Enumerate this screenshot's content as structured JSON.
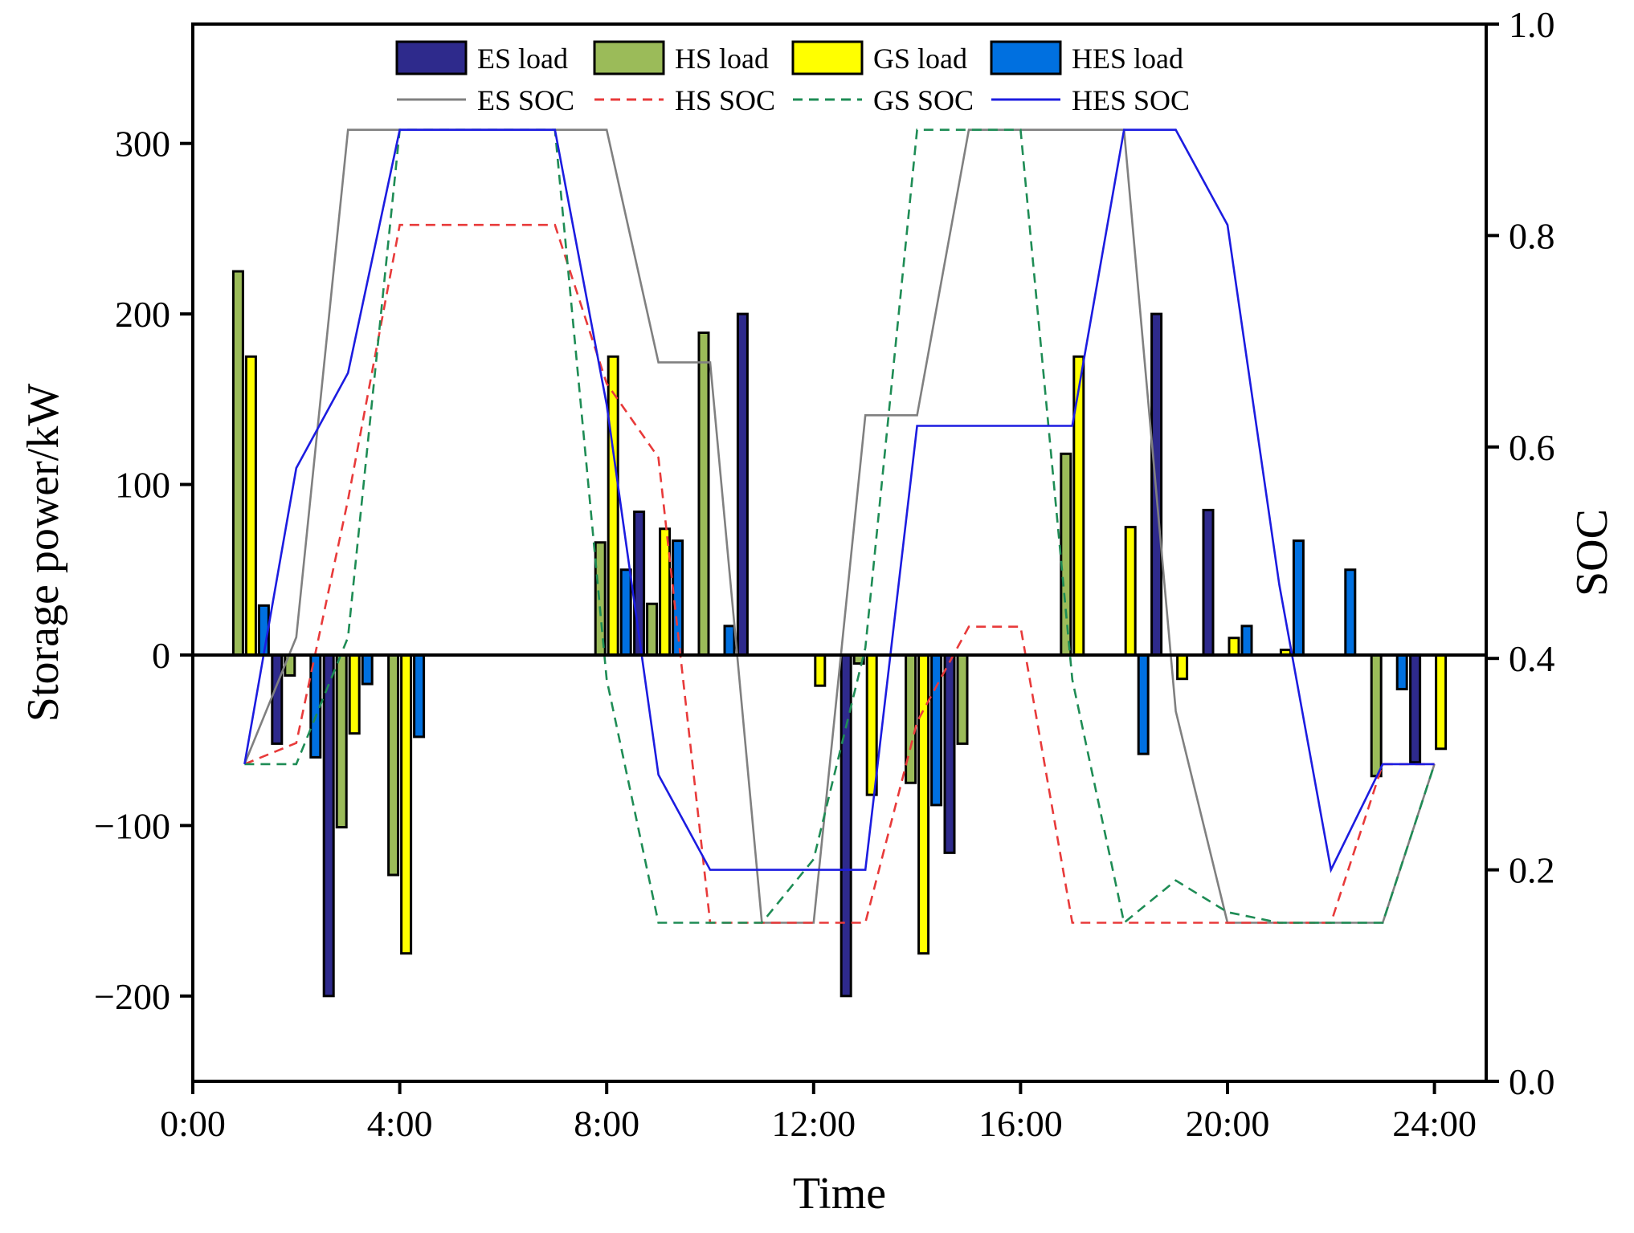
{
  "chart_data": {
    "type": "bar",
    "xlabel": "Time",
    "ylabel": "Storage power/kW",
    "y2label": "SOC",
    "xlim": [
      0,
      25
    ],
    "ylim": [
      -250,
      370
    ],
    "y2lim": [
      0.0,
      1.0
    ],
    "x_ticks": [
      0,
      4,
      8,
      12,
      16,
      20,
      24
    ],
    "x_tick_labels": [
      "0:00",
      "4:00",
      "8:00",
      "12:00",
      "16:00",
      "20:00",
      "24:00"
    ],
    "y_ticks": [
      300,
      200,
      100,
      0,
      -100,
      -200
    ],
    "y_tick_labels": [
      "300",
      "200",
      "100",
      "0",
      "−100",
      "−200"
    ],
    "y2_ticks": [
      0.0,
      0.2,
      0.4,
      0.6,
      0.8,
      1.0
    ],
    "y2_tick_labels": [
      "0.0",
      "0.2",
      "0.4",
      "0.6",
      "0.8",
      "1.0"
    ],
    "hours": [
      1,
      2,
      3,
      4,
      5,
      6,
      7,
      8,
      9,
      10,
      11,
      12,
      13,
      14,
      15,
      16,
      17,
      18,
      19,
      20,
      21,
      22,
      23,
      24
    ],
    "bar_series": [
      {
        "name": "ES load",
        "color": "#2E2A8C",
        "values": [
          0,
          -52,
          -200,
          0,
          0,
          0,
          0,
          0,
          84,
          0,
          200,
          0,
          -200,
          0,
          -116,
          0,
          0,
          0,
          200,
          85,
          0,
          0,
          0,
          -63
        ]
      },
      {
        "name": "HS load",
        "color": "#9BBB59",
        "values": [
          225,
          -12,
          -101,
          -129,
          0,
          0,
          0,
          66,
          30,
          189,
          0,
          0,
          -5,
          -75,
          -52,
          0,
          118,
          0,
          0,
          0,
          0,
          0,
          -71,
          0
        ]
      },
      {
        "name": "GS load",
        "color": "#FFFF00",
        "values": [
          175,
          0,
          -46,
          -175,
          0,
          0,
          0,
          175,
          74,
          0,
          0,
          -18,
          -82,
          -175,
          0,
          0,
          175,
          75,
          -14,
          10,
          3,
          0,
          0,
          -55
        ]
      },
      {
        "name": "HES load",
        "color": "#0070E0",
        "values": [
          29,
          -60,
          -17,
          -48,
          0,
          0,
          0,
          50,
          67,
          17,
          0,
          0,
          0,
          -88,
          0,
          0,
          0,
          -58,
          0,
          17,
          67,
          50,
          -20,
          0
        ]
      }
    ],
    "line_series": [
      {
        "name": "ES SOC",
        "color": "#808080",
        "dash": "solid",
        "x": [
          1,
          2,
          3,
          4,
          5,
          6,
          7,
          8,
          9,
          10,
          11,
          12,
          13,
          14,
          15,
          16,
          17,
          18,
          19,
          20,
          21,
          22,
          23,
          24
        ],
        "values": [
          0.3,
          0.42,
          0.9,
          0.9,
          0.9,
          0.9,
          0.9,
          0.9,
          0.68,
          0.68,
          0.15,
          0.15,
          0.63,
          0.63,
          0.9,
          0.9,
          0.9,
          0.9,
          0.35,
          0.15,
          0.15,
          0.15,
          0.15,
          0.3
        ]
      },
      {
        "name": "HS SOC",
        "color": "#E83A3A",
        "dash": "dashed",
        "x": [
          1,
          2,
          3,
          4,
          5,
          6,
          7,
          8,
          9,
          10,
          11,
          12,
          13,
          14,
          15,
          16,
          17,
          18,
          19,
          20,
          21,
          22,
          23,
          24
        ],
        "values": [
          0.3,
          0.32,
          0.55,
          0.81,
          0.81,
          0.81,
          0.81,
          0.66,
          0.59,
          0.15,
          0.15,
          0.15,
          0.15,
          0.34,
          0.43,
          0.43,
          0.15,
          0.15,
          0.15,
          0.15,
          0.15,
          0.15,
          0.3,
          0.3
        ]
      },
      {
        "name": "GS SOC",
        "color": "#1E8C55",
        "dash": "dashed",
        "x": [
          1,
          2,
          3,
          4,
          5,
          6,
          7,
          8,
          9,
          10,
          11,
          12,
          13,
          14,
          15,
          16,
          17,
          18,
          19,
          20,
          21,
          22,
          23,
          24
        ],
        "values": [
          0.3,
          0.3,
          0.42,
          0.9,
          0.9,
          0.9,
          0.9,
          0.38,
          0.15,
          0.15,
          0.15,
          0.21,
          0.41,
          0.9,
          0.9,
          0.9,
          0.38,
          0.15,
          0.19,
          0.16,
          0.15,
          0.15,
          0.15,
          0.3
        ]
      },
      {
        "name": "HES SOC",
        "color": "#1C1CE0",
        "dash": "solid",
        "x": [
          1,
          2,
          3,
          4,
          5,
          6,
          7,
          8,
          9,
          10,
          11,
          12,
          13,
          14,
          15,
          16,
          17,
          18,
          19,
          20,
          21,
          22,
          23,
          24
        ],
        "values": [
          0.3,
          0.58,
          0.67,
          0.9,
          0.9,
          0.9,
          0.9,
          0.64,
          0.29,
          0.2,
          0.2,
          0.2,
          0.2,
          0.62,
          0.62,
          0.62,
          0.62,
          0.9,
          0.9,
          0.81,
          0.47,
          0.2,
          0.3,
          0.3
        ]
      }
    ]
  }
}
